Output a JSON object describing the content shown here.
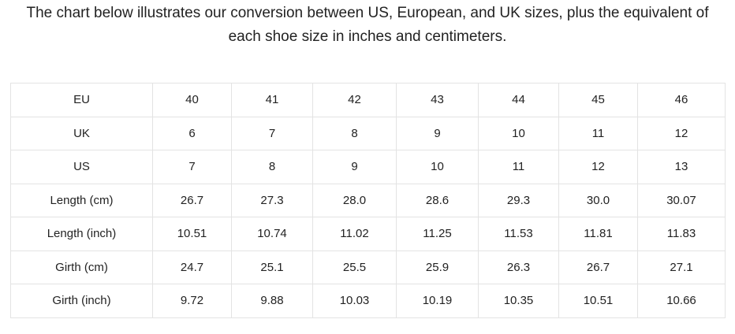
{
  "intro": "The chart below illustrates our conversion between US, European, and UK sizes, plus the equivalent of each shoe size in inches and centimeters.",
  "table": {
    "rows": [
      [
        "EU",
        "40",
        "41",
        "42",
        "43",
        "44",
        "45",
        "46"
      ],
      [
        "UK",
        "6",
        "7",
        "8",
        "9",
        "10",
        "11",
        "12"
      ],
      [
        "US",
        "7",
        "8",
        "9",
        "10",
        "11",
        "12",
        "13"
      ],
      [
        "Length (cm)",
        "26.7",
        "27.3",
        "28.0",
        "28.6",
        "29.3",
        "30.0",
        "30.07"
      ],
      [
        "Length (inch)",
        "10.51",
        "10.74",
        "11.02",
        "11.25",
        "11.53",
        "11.81",
        "11.83"
      ],
      [
        "Girth (cm)",
        "24.7",
        "25.1",
        "25.5",
        "25.9",
        "26.3",
        "26.7",
        "27.1"
      ],
      [
        "Girth (inch)",
        "9.72",
        "9.88",
        "10.03",
        "10.19",
        "10.35",
        "10.51",
        "10.66"
      ]
    ]
  }
}
